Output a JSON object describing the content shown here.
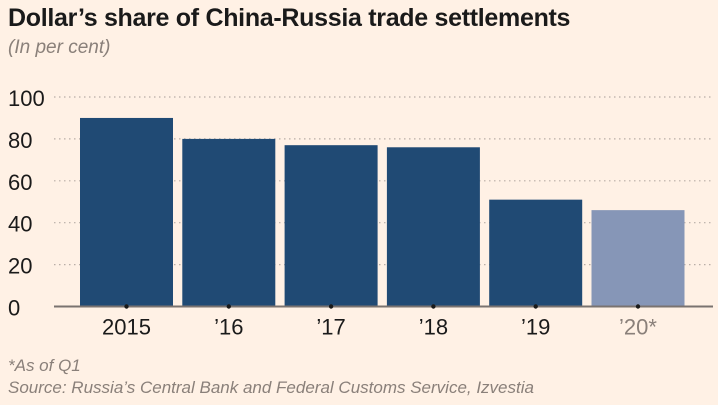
{
  "chart_data": {
    "type": "bar",
    "title": "Dollar’s share of China-Russia trade settlements",
    "subtitle": "(In per cent)",
    "categories": [
      "2015",
      "’16",
      "’17",
      "’18",
      "’19",
      "’20*"
    ],
    "values": [
      90,
      80,
      77,
      76,
      51,
      46
    ],
    "ylim": [
      0,
      100
    ],
    "yticks": [
      0,
      20,
      40,
      60,
      80,
      100
    ],
    "grid": true,
    "colors": {
      "bar": "#204a74",
      "highlight_bar": "#8696b7",
      "axis": "#7a7370",
      "grid": "#b8ada6"
    },
    "highlighted_category": "’20*",
    "footnote": "*As of Q1",
    "source": "Source: Russia’s Central Bank and Federal Customs Service, Izvestia"
  }
}
